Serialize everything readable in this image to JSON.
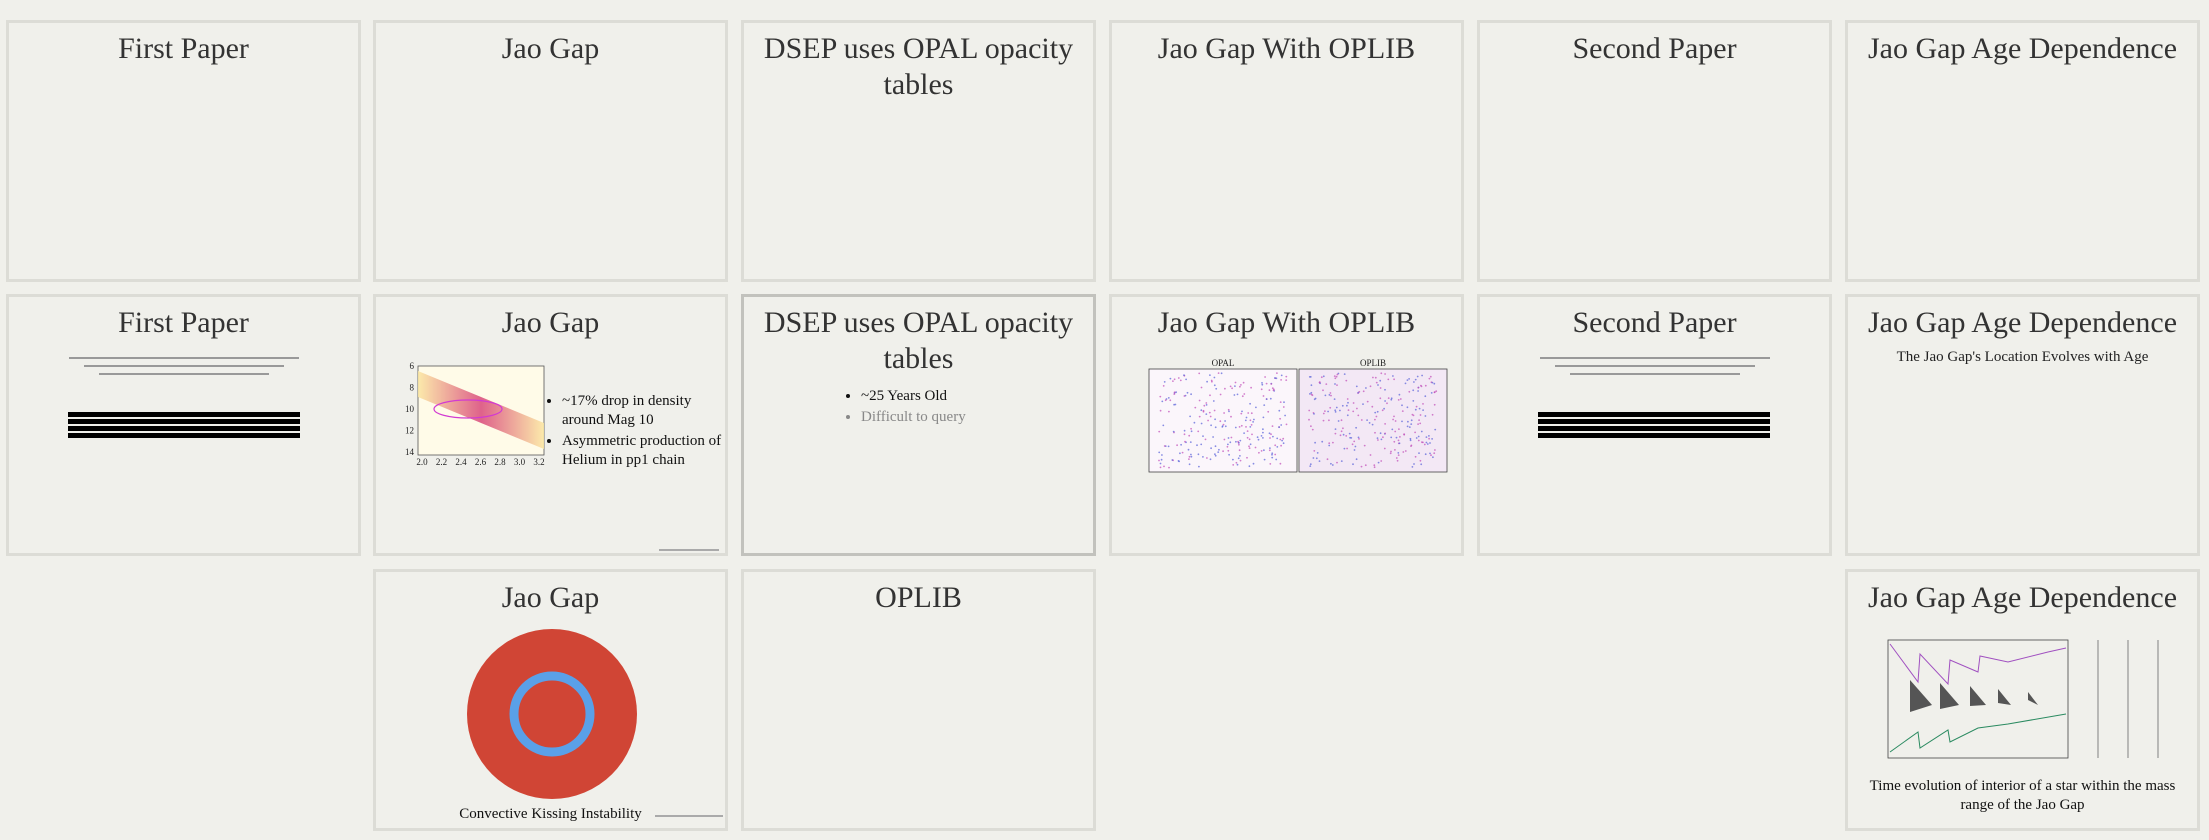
{
  "slides": [
    {
      "title": "First Paper"
    },
    {
      "title": "Jao Gap"
    },
    {
      "title": "DSEP uses OPAL opacity tables"
    },
    {
      "title": "Jao Gap With OPLIB"
    },
    {
      "title": "Second Paper"
    },
    {
      "title": "Jao Gap Age Dependence"
    },
    {
      "title": "First Paper"
    },
    {
      "title": "Jao Gap",
      "bullets": [
        "~17% drop in density around Mag 10",
        "Asymmetric production of Helium in pp1 chain"
      ],
      "plot_y_ticks": [
        "6",
        "8",
        "10",
        "12",
        "14"
      ],
      "plot_x_ticks": [
        "2.0",
        "2.2",
        "2.4",
        "2.6",
        "2.8",
        "3.0",
        "3.2"
      ]
    },
    {
      "title": "DSEP uses OPAL opacity tables",
      "bullets": [
        "~25 Years Old",
        "Difficult to query"
      ]
    },
    {
      "title": "Jao Gap With OPLIB",
      "panel_titles": [
        "OPAL",
        "OPLIB"
      ]
    },
    {
      "title": "Second Paper"
    },
    {
      "title": "Jao Gap Age Dependence",
      "subtitle": "The Jao Gap's Location Evolves with Age"
    },
    {
      "title": "Jao Gap",
      "caption": "Convective Kissing Instability"
    },
    {
      "title": "OPLIB"
    },
    {
      "title": "Jao Gap Age Dependence",
      "caption": "Time evolution of interior of a star within the mass range of the Jao Gap"
    }
  ]
}
